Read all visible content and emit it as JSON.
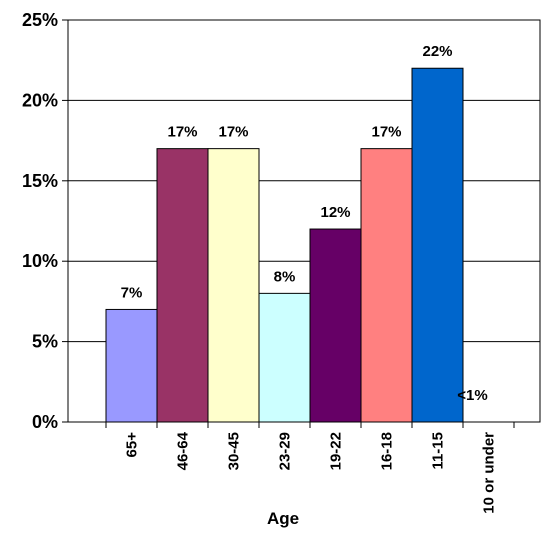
{
  "chart_data": {
    "type": "bar",
    "xlabel": "Age",
    "ylabel": "",
    "ylim": [
      0,
      25
    ],
    "y_ticks": [
      0,
      5,
      10,
      15,
      20,
      25
    ],
    "y_tick_labels": [
      "0%",
      "5%",
      "10%",
      "15%",
      "20%",
      "25%"
    ],
    "grid": true,
    "categories": [
      "65+",
      "46-64",
      "30-45",
      "23-29",
      "19-22",
      "16-18",
      "11-15",
      "10 or under"
    ],
    "values": [
      7,
      17,
      17,
      8,
      12,
      17,
      22,
      0
    ],
    "data_labels": [
      "7%",
      "17%",
      "17%",
      "8%",
      "12%",
      "17%",
      "22%",
      "<1%"
    ],
    "colors": [
      "#9999ff",
      "#993366",
      "#ffffcc",
      "#ccffff",
      "#660066",
      "#ff8080",
      "#0066cc",
      "#ffffff"
    ]
  }
}
